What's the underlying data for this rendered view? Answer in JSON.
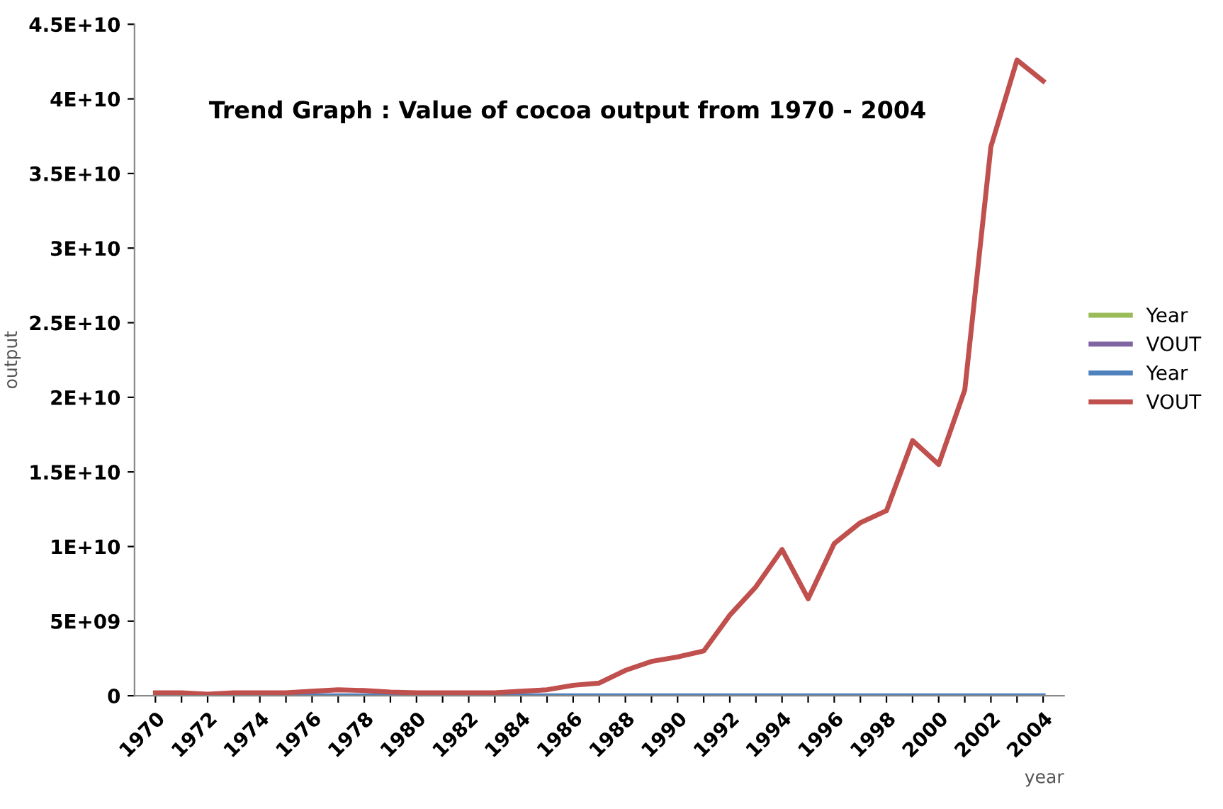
{
  "chart_data": {
    "type": "line",
    "title": "Trend Graph : Value of cocoa output from 1970 - 2004",
    "xlabel": "year",
    "ylabel": "output",
    "categories": [
      "1970",
      null,
      "1972",
      null,
      "1974",
      null,
      "1976",
      null,
      "1978",
      null,
      "1980",
      null,
      "1982",
      null,
      "1984",
      null,
      "1986",
      null,
      "1988",
      null,
      "1990",
      null,
      "1992",
      null,
      "1994",
      null,
      "1996",
      null,
      "1998",
      null,
      "2000",
      null,
      "2002",
      null,
      "2004"
    ],
    "series": [
      {
        "name": "Year",
        "color": "#9bbb59",
        "values": [
          null,
          null,
          null,
          null,
          null,
          null,
          null,
          null,
          null,
          null,
          null,
          null,
          null,
          null,
          null,
          null,
          null,
          null,
          null,
          null,
          null,
          null,
          null,
          null,
          null,
          null,
          null,
          null,
          null,
          null,
          null,
          null,
          null,
          null,
          null
        ]
      },
      {
        "name": "VOUT",
        "color": "#8064a2",
        "values": [
          null,
          null,
          null,
          null,
          null,
          null,
          null,
          null,
          null,
          null,
          null,
          null,
          null,
          null,
          null,
          null,
          null,
          null,
          null,
          null,
          null,
          null,
          null,
          null,
          null,
          null,
          null,
          null,
          null,
          null,
          null,
          null,
          null,
          null,
          null
        ]
      },
      {
        "name": "Year",
        "color": "#4f81bd",
        "values": [
          null,
          null,
          null,
          null,
          0,
          0,
          0,
          0,
          0,
          0,
          0,
          0,
          0,
          0,
          0,
          0,
          0,
          0,
          0,
          0,
          0,
          0,
          0,
          0,
          0,
          0,
          0,
          0,
          0,
          0,
          0,
          0,
          0,
          0,
          0
        ]
      },
      {
        "name": "VOUT",
        "color": "#c0504d",
        "values": [
          200000000,
          200000000,
          100000000,
          200000000,
          200000000,
          200000000,
          300000000,
          400000000,
          350000000,
          250000000,
          200000000,
          200000000,
          200000000,
          200000000,
          300000000,
          400000000,
          700000000,
          850000000,
          1700000000,
          2300000000,
          2600000000,
          3000000000,
          5400000000,
          7300000000,
          9800000000,
          6500000000,
          10200000000,
          11600000000,
          12400000000,
          17100000000,
          15500000000,
          20500000000,
          36800000000,
          42600000000,
          41200000000
        ]
      }
    ],
    "ylim": [
      0,
      45000000000
    ],
    "yticks": [
      {
        "value": 0,
        "label": "0"
      },
      {
        "value": 5000000000,
        "label": "5E+09"
      },
      {
        "value": 10000000000,
        "label": "1E+10"
      },
      {
        "value": 15000000000,
        "label": "1.5E+10"
      },
      {
        "value": 20000000000,
        "label": "2E+10"
      },
      {
        "value": 25000000000,
        "label": "2.5E+10"
      },
      {
        "value": 30000000000,
        "label": "3E+10"
      },
      {
        "value": 35000000000,
        "label": "3.5E+10"
      },
      {
        "value": 40000000000,
        "label": "4E+10"
      },
      {
        "value": 45000000000,
        "label": "4.5E+10"
      }
    ],
    "grid": false,
    "legend": "right",
    "marker": "none",
    "line_style": "solid"
  }
}
